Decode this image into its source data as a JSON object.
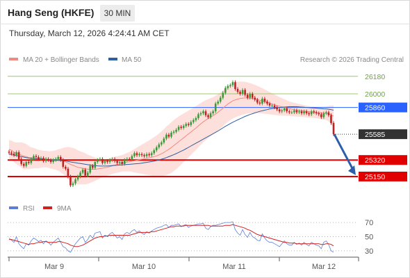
{
  "header": {
    "title": "Hang Seng (HKFE)",
    "timeframe": "30 MIN",
    "datetime": "Thursday, March 12, 2026 4:24:41 AM CET"
  },
  "colors": {
    "bollinger_fill": "#fde0dc",
    "ma20": "#f08a80",
    "ma50": "#2f5f9f",
    "resistance": "#9ccc65",
    "pivot": "#2962ff",
    "support": "#e00000",
    "last": "#333333",
    "candle_up": "#3a9a3a",
    "candle_down": "#c02020",
    "rsi": "#5b7fd8",
    "rsi_ma": "#d02020"
  },
  "chart_data": [
    {
      "type": "candlestick",
      "title": "Hang Seng (HKFE) 30 MIN",
      "legend": [
        "MA 20 + Bollinger Bands",
        "MA 50"
      ],
      "credit": "Research © 2026 Trading Central",
      "ylim": [
        24950,
        26250
      ],
      "x_ticks": [
        "Mar 9",
        "Mar 10",
        "Mar 11",
        "Mar 12"
      ],
      "candles_close": [
        25395,
        25385,
        25370,
        25400,
        25330,
        25280,
        25260,
        25300,
        25290,
        25330,
        25360,
        25350,
        25330,
        25340,
        25310,
        25330,
        25320,
        25300,
        25320,
        25330,
        25350,
        25320,
        25250,
        25230,
        25150,
        25060,
        25080,
        25120,
        25150,
        25190,
        25220,
        25160,
        25190,
        25260,
        25240,
        25300,
        25320,
        25330,
        25290,
        25310,
        25300,
        25320,
        25330,
        25310,
        25290,
        25300,
        25280,
        25320,
        25330,
        25330,
        25360,
        25390,
        25370,
        25380,
        25370,
        25360,
        25380,
        25370,
        25390,
        25420,
        25450,
        25480,
        25500,
        25540,
        25580,
        25560,
        25600,
        25610,
        25630,
        25660,
        25650,
        25670,
        25690,
        25680,
        25710,
        25730,
        25750,
        25790,
        25800,
        25820,
        25780,
        25760,
        25800,
        25820,
        25900,
        25920,
        25960,
        26010,
        26060,
        26080,
        26090,
        26120,
        26050,
        26020,
        26000,
        26040,
        25990,
        25960,
        26000,
        25960,
        25940,
        25910,
        25900,
        25950,
        25920,
        25900,
        25880,
        25880,
        25860,
        25840,
        25820,
        25830,
        25850,
        25820,
        25810,
        25810,
        25830,
        25810,
        25820,
        25800,
        25820,
        25800,
        25790,
        25820,
        25810,
        25800,
        25790,
        25760,
        25800,
        25810,
        25780,
        25700,
        25585
      ],
      "candles_dir": [
        -1,
        -1,
        -1,
        1,
        -1,
        -1,
        -1,
        1,
        -1,
        1,
        1,
        -1,
        -1,
        1,
        -1,
        1,
        -1,
        -1,
        1,
        1,
        1,
        -1,
        -1,
        -1,
        -1,
        -1,
        1,
        1,
        1,
        1,
        1,
        -1,
        1,
        1,
        -1,
        1,
        1,
        1,
        -1,
        1,
        -1,
        1,
        1,
        -1,
        -1,
        1,
        -1,
        1,
        1,
        -1,
        1,
        1,
        -1,
        1,
        -1,
        -1,
        1,
        -1,
        1,
        1,
        1,
        1,
        1,
        1,
        1,
        -1,
        1,
        1,
        1,
        1,
        -1,
        1,
        1,
        -1,
        1,
        1,
        1,
        1,
        1,
        1,
        -1,
        -1,
        1,
        1,
        1,
        1,
        1,
        1,
        1,
        1,
        1,
        1,
        -1,
        -1,
        -1,
        1,
        -1,
        -1,
        1,
        -1,
        -1,
        -1,
        -1,
        1,
        -1,
        -1,
        -1,
        1,
        -1,
        -1,
        -1,
        1,
        1,
        -1,
        -1,
        1,
        1,
        -1,
        1,
        -1,
        1,
        -1,
        -1,
        1,
        -1,
        -1,
        -1,
        -1,
        1,
        1,
        -1,
        -1,
        -1
      ],
      "ma20": [
        25430,
        25420,
        25400,
        25390,
        25380,
        25370,
        25360,
        25355,
        25345,
        25340,
        25340,
        25335,
        25330,
        25330,
        25330,
        25330,
        25325,
        25320,
        25320,
        25320,
        25320,
        25315,
        25310,
        25300,
        25290,
        25275,
        25265,
        25255,
        25245,
        25240,
        25235,
        25230,
        25225,
        25225,
        25225,
        25225,
        25228,
        25232,
        25236,
        25240,
        25245,
        25252,
        25260,
        25268,
        25274,
        25280,
        25286,
        25292,
        25298,
        25302,
        25308,
        25312,
        25318,
        25322,
        25328,
        25332,
        25338,
        25342,
        25348,
        25355,
        25362,
        25372,
        25384,
        25398,
        25414,
        25430,
        25448,
        25468,
        25488,
        25508,
        25528,
        25548,
        25568,
        25588,
        25608,
        25628,
        25648,
        25670,
        25692,
        25712,
        25730,
        25745,
        25760,
        25775,
        25792,
        25810,
        25830,
        25852,
        25874,
        25894,
        25912,
        25928,
        25938,
        25946,
        25952,
        25956,
        25958,
        25958,
        25956,
        25952,
        25948,
        25942,
        25934,
        25928,
        25920,
        25912,
        25904,
        25896,
        25888,
        25880,
        25872,
        25866,
        25860,
        25854,
        25848,
        25842,
        25838,
        25834,
        25830,
        25826,
        25822,
        25818,
        25815,
        25812,
        25810,
        25808,
        25806,
        25804,
        25802,
        25800,
        25796,
        25785,
        25770
      ],
      "ma50": [
        25380,
        25375,
        25370,
        25365,
        25360,
        25355,
        25350,
        25345,
        25340,
        25338,
        25336,
        25334,
        25332,
        25330,
        25328,
        25326,
        25324,
        25322,
        25320,
        25318,
        25316,
        25314,
        25312,
        25310,
        25305,
        25300,
        25296,
        25292,
        25288,
        25284,
        25280,
        25276,
        25272,
        25268,
        25264,
        25262,
        25260,
        25258,
        25258,
        25258,
        25258,
        25260,
        25262,
        25264,
        25266,
        25268,
        25270,
        25272,
        25274,
        25276,
        25278,
        25280,
        25282,
        25284,
        25288,
        25292,
        25296,
        25300,
        25304,
        25308,
        25314,
        25320,
        25328,
        25336,
        25344,
        25354,
        25364,
        25374,
        25386,
        25398,
        25410,
        25422,
        25436,
        25450,
        25464,
        25478,
        25492,
        25506,
        25520,
        25534,
        25548,
        25562,
        25576,
        25590,
        25604,
        25618,
        25634,
        25650,
        25666,
        25680,
        25694,
        25708,
        25720,
        25732,
        25744,
        25756,
        25768,
        25778,
        25788,
        25796,
        25804,
        25812,
        25820,
        25826,
        25832,
        25838,
        25844,
        25848,
        25852,
        25856,
        25860,
        25862,
        25864,
        25866,
        25868,
        25868,
        25868,
        25868,
        25866,
        25864,
        25862,
        25860,
        25858,
        25856,
        25854,
        25852,
        25850,
        25848,
        25846,
        25844,
        25842,
        25838,
        25832
      ],
      "bb_width": [
        95,
        100,
        105,
        110,
        120,
        130,
        135,
        130,
        120,
        110,
        105,
        100,
        95,
        90,
        85,
        85,
        85,
        90,
        95,
        100,
        110,
        120,
        135,
        150,
        165,
        175,
        180,
        180,
        175,
        170,
        165,
        160,
        150,
        140,
        130,
        120,
        110,
        100,
        95,
        90,
        85,
        85,
        85,
        85,
        85,
        85,
        85,
        90,
        95,
        100,
        110,
        120,
        130,
        140,
        150,
        160,
        170,
        180,
        190,
        200,
        210,
        220,
        230,
        240,
        250,
        255,
        260,
        262,
        262,
        260,
        255,
        250,
        245,
        240,
        235,
        230,
        225,
        220,
        215,
        210,
        205,
        200,
        195,
        190,
        188,
        186,
        185,
        184,
        183,
        182,
        182,
        182,
        180,
        178,
        175,
        170,
        165,
        160,
        155,
        150,
        145,
        140,
        135,
        130,
        125,
        120,
        115,
        110,
        105,
        100,
        95,
        90,
        85,
        80,
        75,
        72,
        70,
        68,
        66,
        64,
        62,
        60,
        58,
        58,
        58,
        60,
        62,
        64,
        66,
        70,
        80,
        95,
        110
      ],
      "levels": [
        {
          "value": "26180",
          "role": "resistance"
        },
        {
          "value": "26000",
          "role": "resistance"
        },
        {
          "value": "25860",
          "role": "pivot"
        },
        {
          "value": "25585",
          "role": "last"
        },
        {
          "value": "25320",
          "role": "support"
        },
        {
          "value": "25150",
          "role": "support"
        }
      ],
      "forecast_arrow": {
        "from": 25585,
        "to": 25150
      }
    },
    {
      "type": "line",
      "title": "RSI",
      "legend": [
        "RSI",
        "9MA"
      ],
      "ylim": [
        25,
        75
      ],
      "y_ticks": [
        "70",
        "50",
        "30"
      ],
      "rsi": [
        48,
        45,
        42,
        50,
        40,
        36,
        33,
        40,
        38,
        44,
        48,
        46,
        43,
        45,
        40,
        44,
        42,
        38,
        42,
        45,
        48,
        42,
        36,
        34,
        30,
        28,
        34,
        40,
        44,
        48,
        50,
        42,
        46,
        52,
        48,
        55,
        56,
        57,
        48,
        52,
        50,
        54,
        56,
        52,
        48,
        50,
        46,
        54,
        56,
        54,
        58,
        60,
        56,
        58,
        55,
        53,
        57,
        55,
        58,
        60,
        62,
        63,
        64,
        66,
        67,
        63,
        66,
        66,
        67,
        68,
        64,
        66,
        67,
        63,
        65,
        66,
        67,
        68,
        68,
        69,
        62,
        60,
        64,
        66,
        66,
        67,
        68,
        69,
        70,
        70,
        70,
        71,
        60,
        55,
        52,
        60,
        53,
        49,
        56,
        50,
        48,
        45,
        44,
        54,
        48,
        44,
        42,
        42,
        40,
        38,
        36,
        40,
        44,
        40,
        38,
        38,
        42,
        39,
        41,
        38,
        42,
        39,
        37,
        42,
        40,
        38,
        37,
        33,
        42,
        44,
        39,
        30,
        28
      ],
      "ma9": [
        46,
        46,
        45,
        44,
        43,
        42,
        41,
        40,
        39,
        40,
        40,
        41,
        42,
        42,
        43,
        43,
        42,
        42,
        42,
        42,
        43,
        43,
        42,
        41,
        40,
        38,
        37,
        36,
        36,
        37,
        38,
        40,
        42,
        44,
        46,
        48,
        49,
        50,
        50,
        51,
        51,
        52,
        52,
        52,
        52,
        52,
        52,
        52,
        52,
        52,
        53,
        54,
        55,
        56,
        56,
        56,
        56,
        56,
        57,
        57,
        58,
        59,
        60,
        61,
        62,
        63,
        64,
        64,
        65,
        65,
        65,
        65,
        66,
        66,
        66,
        66,
        66,
        66,
        66,
        66,
        66,
        66,
        65,
        65,
        65,
        65,
        65,
        65,
        66,
        66,
        66,
        67,
        66,
        65,
        64,
        63,
        62,
        60,
        59,
        57,
        55,
        53,
        52,
        51,
        50,
        49,
        48,
        47,
        46,
        45,
        44,
        43,
        42,
        42,
        41,
        41,
        41,
        40,
        40,
        40,
        40,
        40,
        40,
        40,
        40,
        40,
        40,
        39,
        39,
        40,
        40,
        39,
        37
      ]
    }
  ]
}
